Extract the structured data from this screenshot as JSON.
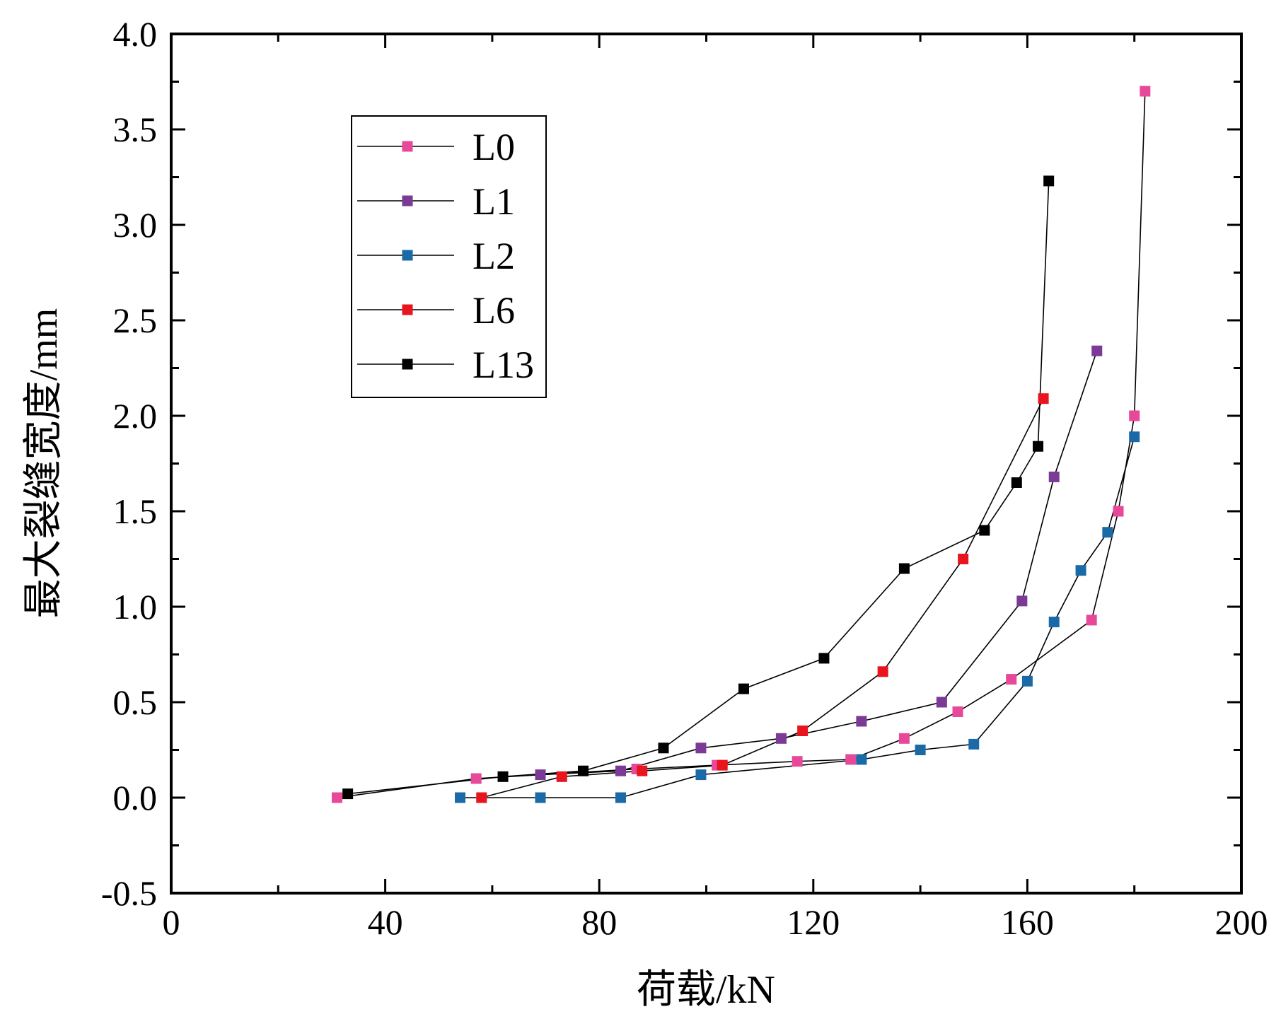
{
  "chart_data": {
    "type": "line",
    "title": "",
    "xlabel": "荷载/kN",
    "ylabel": "最大裂缝宽度/mm",
    "xlim": [
      0,
      200
    ],
    "ylim": [
      -0.5,
      4.0
    ],
    "xticks": [
      0,
      40,
      80,
      120,
      160,
      200
    ],
    "yticks": [
      -0.5,
      0.0,
      0.5,
      1.0,
      1.5,
      2.0,
      2.5,
      3.0,
      3.5,
      4.0
    ],
    "xtick_labels": [
      "0",
      "40",
      "80",
      "120",
      "160",
      "200"
    ],
    "ytick_labels": [
      "-0.5",
      "0.0",
      "0.5",
      "1.0",
      "1.5",
      "2.0",
      "2.5",
      "3.0",
      "3.5",
      "4.0"
    ],
    "grid": false,
    "legend_position": "upper-left",
    "series": [
      {
        "name": "L0",
        "color": "#E8489A",
        "x": [
          31,
          57,
          87,
          102,
          117,
          127,
          137,
          147,
          157,
          172,
          177,
          180,
          182
        ],
        "y": [
          0.0,
          0.1,
          0.15,
          0.17,
          0.19,
          0.2,
          0.31,
          0.45,
          0.62,
          0.93,
          1.5,
          2.0,
          3.7
        ]
      },
      {
        "name": "L1",
        "color": "#7B3A96",
        "x": [
          69,
          84,
          99,
          114,
          129,
          144,
          159,
          165,
          173
        ],
        "y": [
          0.12,
          0.14,
          0.26,
          0.31,
          0.4,
          0.5,
          1.03,
          1.68,
          2.34
        ]
      },
      {
        "name": "L2",
        "color": "#1B6AA8",
        "x": [
          54,
          69,
          84,
          99,
          129,
          140,
          150,
          160,
          165,
          170,
          175,
          180
        ],
        "y": [
          0.0,
          0.0,
          0.0,
          0.12,
          0.2,
          0.25,
          0.28,
          0.61,
          0.92,
          1.19,
          1.39,
          1.89
        ]
      },
      {
        "name": "L6",
        "color": "#E8141E",
        "x": [
          58,
          73,
          88,
          103,
          118,
          133,
          148,
          163
        ],
        "y": [
          0.0,
          0.11,
          0.14,
          0.17,
          0.35,
          0.66,
          1.25,
          2.09
        ]
      },
      {
        "name": "L13",
        "color": "#000000",
        "x": [
          33,
          62,
          77,
          92,
          107,
          122,
          137,
          152,
          158,
          162,
          164
        ],
        "y": [
          0.02,
          0.11,
          0.14,
          0.26,
          0.57,
          0.73,
          1.2,
          1.4,
          1.65,
          1.84,
          3.23
        ]
      }
    ]
  }
}
